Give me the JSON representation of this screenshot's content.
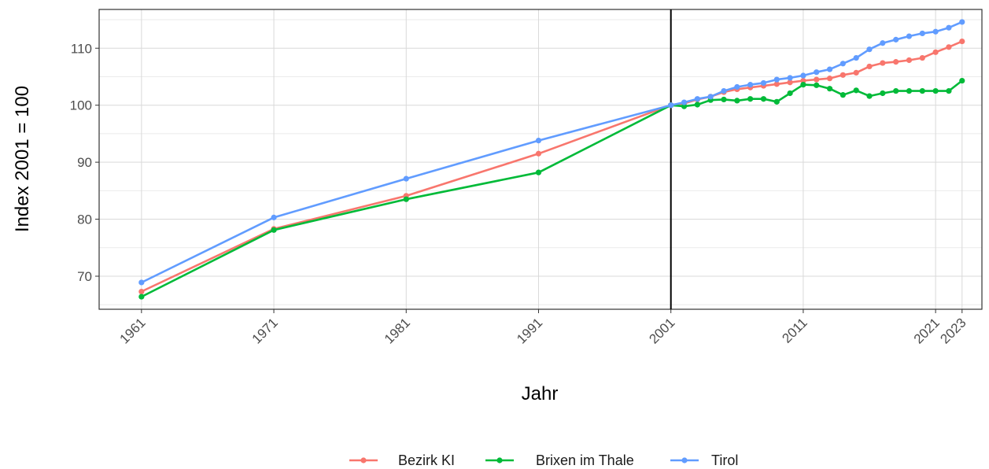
{
  "chart_data": {
    "type": "line",
    "xlabel": "Jahr",
    "ylabel": "Index 2001 = 100",
    "xlim": [
      1957.8,
      2024.5
    ],
    "ylim": [
      64.2,
      116.8
    ],
    "x_ticks": [
      1961,
      1971,
      1981,
      1991,
      2001,
      2011,
      2021,
      2023
    ],
    "y_ticks": [
      70,
      80,
      90,
      100,
      110
    ],
    "vline_x": 2001,
    "grid": true,
    "legend_position": "bottom",
    "series": [
      {
        "name": "Bezirk KI",
        "color": "#F8766D",
        "x": [
          1961,
          1971,
          1981,
          1991,
          2001,
          2002,
          2003,
          2004,
          2005,
          2006,
          2007,
          2008,
          2009,
          2010,
          2011,
          2012,
          2013,
          2014,
          2015,
          2016,
          2017,
          2018,
          2019,
          2020,
          2021,
          2022,
          2023
        ],
        "y": [
          67.3,
          78.3,
          84.1,
          91.5,
          100.0,
          100.3,
          101.0,
          101.5,
          102.3,
          102.8,
          103.1,
          103.4,
          103.7,
          104.0,
          104.3,
          104.5,
          104.7,
          105.3,
          105.7,
          106.8,
          107.4,
          107.6,
          107.9,
          108.3,
          109.3,
          110.2,
          111.2
        ]
      },
      {
        "name": "Brixen im Thale",
        "color": "#00BA38",
        "x": [
          1961,
          1971,
          1981,
          1991,
          2001,
          2002,
          2003,
          2004,
          2005,
          2006,
          2007,
          2008,
          2009,
          2010,
          2011,
          2012,
          2013,
          2014,
          2015,
          2016,
          2017,
          2018,
          2019,
          2020,
          2021,
          2022,
          2023
        ],
        "y": [
          66.4,
          78.1,
          83.5,
          88.2,
          100.0,
          99.8,
          100.1,
          100.9,
          101.0,
          100.8,
          101.1,
          101.1,
          100.6,
          102.1,
          103.6,
          103.5,
          102.9,
          101.8,
          102.6,
          101.6,
          102.1,
          102.5,
          102.5,
          102.5,
          102.5,
          102.5,
          104.3
        ]
      },
      {
        "name": "Tirol",
        "color": "#619CFF",
        "x": [
          1961,
          1971,
          1981,
          1991,
          2001,
          2002,
          2003,
          2004,
          2005,
          2006,
          2007,
          2008,
          2009,
          2010,
          2011,
          2012,
          2013,
          2014,
          2015,
          2016,
          2017,
          2018,
          2019,
          2020,
          2021,
          2022,
          2023
        ],
        "y": [
          68.9,
          80.3,
          87.1,
          93.8,
          100.0,
          100.5,
          101.1,
          101.5,
          102.5,
          103.2,
          103.6,
          103.9,
          104.5,
          104.8,
          105.2,
          105.8,
          106.3,
          107.3,
          108.3,
          109.8,
          110.9,
          111.5,
          112.1,
          112.6,
          112.9,
          113.6,
          114.6
        ]
      }
    ]
  }
}
